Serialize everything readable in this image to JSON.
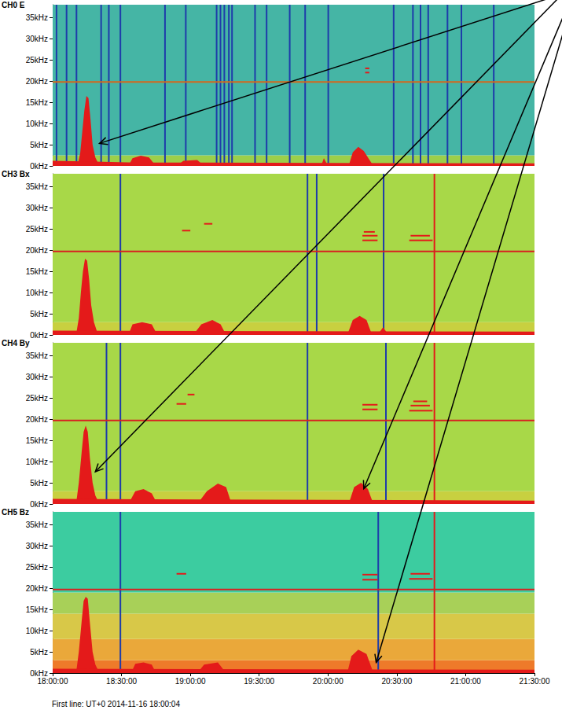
{
  "chart_data": [
    {
      "type": "spectrogram",
      "title": "CH0 E",
      "color": "#e41a1a",
      "grid": false,
      "tick_labels": "y",
      "xlim": [
        18,
        21.5
      ],
      "xticks": [
        {
          "value": 18,
          "label": "18:00:00"
        },
        {
          "value": 18.5,
          "label": "18:30:00"
        },
        {
          "value": 19,
          "label": "19:00:00"
        },
        {
          "value": 19.5,
          "label": "19:30:00"
        },
        {
          "value": 20,
          "label": "20:00:00"
        },
        {
          "value": 20.5,
          "label": "20:30:00"
        },
        {
          "value": 21,
          "label": "21:00:00"
        },
        {
          "value": 21.5,
          "label": "21:30:00"
        }
      ],
      "ylim": [
        0,
        38
      ],
      "yticks": [
        {
          "value": 0,
          "label": "0kHz"
        },
        {
          "value": 5,
          "label": "5kHz"
        },
        {
          "value": 10,
          "label": "10kHz"
        },
        {
          "value": 15,
          "label": "15kHz"
        },
        {
          "value": 20,
          "label": "20kHz"
        },
        {
          "value": 25,
          "label": "25kHz"
        },
        {
          "value": 30,
          "label": "30kHz"
        },
        {
          "value": 35,
          "label": "35kHz"
        }
      ],
      "bands": [
        {
          "from": 0,
          "to": 2.5,
          "color": "#9ccf4a"
        },
        {
          "from": 2.5,
          "to": 38,
          "color": "#45b5a5"
        }
      ],
      "spikes": [
        {
          "color": "#1e3caa",
          "t": [
            18.028,
            18.101,
            18.173,
            18.352,
            18.408,
            18.492,
            18.816,
            18.967,
            19.191,
            19.219,
            19.247,
            19.28,
            19.303,
            19.47,
            19.554,
            19.722,
            19.834,
            20.002,
            20.477,
            20.617,
            20.672,
            20.728,
            20.868,
            20.969,
            21.204
          ]
        }
      ],
      "lines": [
        {
          "f": 19.8,
          "color": "#d2691e"
        }
      ],
      "tones": [
        [
          20.27,
          20.3,
          22.0
        ],
        [
          20.27,
          20.3,
          23.0
        ]
      ],
      "bursts": [
        [
          [
            18.18,
            0
          ],
          [
            18.2,
            3
          ],
          [
            18.215,
            8
          ],
          [
            18.23,
            13
          ],
          [
            18.245,
            16.5
          ],
          [
            18.26,
            16
          ],
          [
            18.275,
            11
          ],
          [
            18.29,
            5
          ],
          [
            18.31,
            2
          ],
          [
            18.34,
            0
          ]
        ],
        [
          [
            18,
            0
          ],
          [
            18,
            1.2
          ],
          [
            18.3,
            1.0
          ],
          [
            18.6,
            0.8
          ],
          [
            21.5,
            0.6
          ],
          [
            21.5,
            0
          ]
        ],
        [
          [
            18.55,
            0
          ],
          [
            18.58,
            1.8
          ],
          [
            18.64,
            2.4
          ],
          [
            18.7,
            2
          ],
          [
            18.75,
            0
          ]
        ],
        [
          [
            18.9,
            0
          ],
          [
            18.95,
            1.2
          ],
          [
            19.05,
            1.4
          ],
          [
            19.1,
            0
          ]
        ],
        [
          [
            19.95,
            0
          ],
          [
            19.97,
            1.8
          ],
          [
            20.0,
            0
          ]
        ],
        [
          [
            20.15,
            0
          ],
          [
            20.18,
            3.2
          ],
          [
            20.22,
            4.5
          ],
          [
            20.26,
            3.5
          ],
          [
            20.3,
            1.5
          ],
          [
            20.33,
            0
          ]
        ]
      ],
      "arrows": [
        [
          18.34,
          5.3
        ]
      ]
    },
    {
      "type": "spectrogram",
      "title": "CH3 Bx",
      "color": "#e41a1a",
      "grid": false,
      "tick_labels": "y",
      "xlim": [
        18,
        21.5
      ],
      "xticks": [
        {
          "value": 18,
          "label": "18:00:00"
        },
        {
          "value": 18.5,
          "label": "18:30:00"
        },
        {
          "value": 19,
          "label": "19:00:00"
        },
        {
          "value": 19.5,
          "label": "19:30:00"
        },
        {
          "value": 20,
          "label": "20:00:00"
        },
        {
          "value": 20.5,
          "label": "20:30:00"
        },
        {
          "value": 21,
          "label": "21:00:00"
        },
        {
          "value": 21.5,
          "label": "21:30:00"
        }
      ],
      "ylim": [
        0,
        38
      ],
      "yticks": [
        {
          "value": 0,
          "label": "0kHz"
        },
        {
          "value": 5,
          "label": "5kHz"
        },
        {
          "value": 10,
          "label": "10kHz"
        },
        {
          "value": 15,
          "label": "15kHz"
        },
        {
          "value": 20,
          "label": "20kHz"
        },
        {
          "value": 25,
          "label": "25kHz"
        },
        {
          "value": 30,
          "label": "30kHz"
        },
        {
          "value": 35,
          "label": "35kHz"
        }
      ],
      "bands": [
        {
          "from": 0,
          "to": 3,
          "color": "#c8d040"
        },
        {
          "from": 3,
          "to": 38,
          "color": "#a8d848"
        }
      ],
      "spikes": [
        {
          "color": "#1e3caa",
          "t": [
            18.492,
            19.851,
            19.918,
            20.404
          ]
        },
        {
          "color": "#e41a1a",
          "t": [
            20.773
          ]
        }
      ],
      "lines": [
        {
          "f": 19.7,
          "color": "#d82020"
        }
      ],
      "tones": [
        [
          20.25,
          20.36,
          22.3
        ],
        [
          20.25,
          20.36,
          23.4
        ],
        [
          20.26,
          20.34,
          24.3
        ],
        [
          20.59,
          20.76,
          22.3
        ],
        [
          20.6,
          20.74,
          23.4
        ],
        [
          19.1,
          19.16,
          26.2
        ],
        [
          18.94,
          19.0,
          24.6
        ]
      ],
      "bursts": [
        [
          [
            18.17,
            0
          ],
          [
            18.19,
            4
          ],
          [
            18.205,
            10
          ],
          [
            18.22,
            15
          ],
          [
            18.235,
            18
          ],
          [
            18.25,
            17.5
          ],
          [
            18.265,
            13
          ],
          [
            18.28,
            7
          ],
          [
            18.3,
            3
          ],
          [
            18.33,
            0
          ]
        ],
        [
          [
            18,
            0
          ],
          [
            18,
            1
          ],
          [
            21.5,
            0.8
          ],
          [
            21.5,
            0
          ]
        ],
        [
          [
            18.55,
            0
          ],
          [
            18.58,
            2.5
          ],
          [
            18.65,
            3
          ],
          [
            18.72,
            2.5
          ],
          [
            18.76,
            0
          ]
        ],
        [
          [
            19.02,
            0
          ],
          [
            19.08,
            2.5
          ],
          [
            19.16,
            3.5
          ],
          [
            19.22,
            2.5
          ],
          [
            19.26,
            0
          ]
        ],
        [
          [
            20.14,
            0
          ],
          [
            20.18,
            3.5
          ],
          [
            20.23,
            4.5
          ],
          [
            20.28,
            3.5
          ],
          [
            20.32,
            0
          ]
        ],
        [
          [
            20.36,
            0
          ],
          [
            20.4,
            1.8
          ],
          [
            20.44,
            0
          ]
        ]
      ],
      "arrows": []
    },
    {
      "type": "spectrogram",
      "title": "CH4 By",
      "color": "#e41a1a",
      "grid": false,
      "tick_labels": "y",
      "xlim": [
        18,
        21.5
      ],
      "xticks": [
        {
          "value": 18,
          "label": "18:00:00"
        },
        {
          "value": 18.5,
          "label": "18:30:00"
        },
        {
          "value": 19,
          "label": "19:00:00"
        },
        {
          "value": 19.5,
          "label": "19:30:00"
        },
        {
          "value": 20,
          "label": "20:00:00"
        },
        {
          "value": 20.5,
          "label": "20:30:00"
        },
        {
          "value": 21,
          "label": "21:00:00"
        },
        {
          "value": 21.5,
          "label": "21:30:00"
        }
      ],
      "ylim": [
        0,
        38
      ],
      "yticks": [
        {
          "value": 0,
          "label": "0kHz"
        },
        {
          "value": 5,
          "label": "5kHz"
        },
        {
          "value": 10,
          "label": "10kHz"
        },
        {
          "value": 15,
          "label": "15kHz"
        },
        {
          "value": 20,
          "label": "20kHz"
        },
        {
          "value": 25,
          "label": "25kHz"
        },
        {
          "value": 30,
          "label": "30kHz"
        },
        {
          "value": 35,
          "label": "35kHz"
        }
      ],
      "bands": [
        {
          "from": 0,
          "to": 3,
          "color": "#c8d040"
        },
        {
          "from": 3,
          "to": 38,
          "color": "#a8d848"
        }
      ],
      "spikes": [
        {
          "color": "#1e3caa",
          "t": [
            18.391,
            18.492,
            19.851,
            20.421
          ]
        },
        {
          "color": "#e41a1a",
          "t": [
            20.773
          ]
        }
      ],
      "lines": [
        {
          "f": 19.7,
          "color": "#d82020"
        }
      ],
      "tones": [
        [
          20.25,
          20.36,
          22.3
        ],
        [
          20.25,
          20.36,
          23.4
        ],
        [
          20.59,
          20.76,
          22.0
        ],
        [
          20.6,
          20.74,
          23.2
        ],
        [
          20.62,
          20.72,
          24.2
        ],
        [
          18.9,
          18.97,
          23.6
        ],
        [
          18.98,
          19.03,
          25.8
        ]
      ],
      "bursts": [
        [
          [
            18.17,
            0
          ],
          [
            18.19,
            5
          ],
          [
            18.21,
            12
          ],
          [
            18.225,
            17
          ],
          [
            18.24,
            18.5
          ],
          [
            18.255,
            17
          ],
          [
            18.27,
            11
          ],
          [
            18.29,
            5
          ],
          [
            18.31,
            2
          ],
          [
            18.34,
            0
          ]
        ],
        [
          [
            18,
            0
          ],
          [
            18,
            1.2
          ],
          [
            21.5,
            0.8
          ],
          [
            21.5,
            0
          ]
        ],
        [
          [
            18.55,
            0
          ],
          [
            18.6,
            3
          ],
          [
            18.66,
            3.5
          ],
          [
            18.72,
            2.5
          ],
          [
            18.76,
            0
          ]
        ],
        [
          [
            19.05,
            0
          ],
          [
            19.12,
            3
          ],
          [
            19.2,
            4.8
          ],
          [
            19.26,
            4
          ],
          [
            19.3,
            0
          ]
        ],
        [
          [
            20.15,
            0
          ],
          [
            20.19,
            4
          ],
          [
            20.24,
            5
          ],
          [
            20.29,
            3.5
          ],
          [
            20.33,
            0
          ]
        ]
      ],
      "arrows": [
        [
          18.31,
          7.6
        ],
        [
          20.26,
          3.6
        ]
      ]
    },
    {
      "type": "spectrogram",
      "title": "CH5 Bz",
      "color": "#e41a1a",
      "grid": false,
      "xlim": [
        18,
        21.5
      ],
      "xticks": [
        {
          "value": 18,
          "label": "18:00:00"
        },
        {
          "value": 18.5,
          "label": "18:30:00"
        },
        {
          "value": 19,
          "label": "19:00:00"
        },
        {
          "value": 19.5,
          "label": "19:30:00"
        },
        {
          "value": 20,
          "label": "20:00:00"
        },
        {
          "value": 20.5,
          "label": "20:30:00"
        },
        {
          "value": 21,
          "label": "21:00:00"
        },
        {
          "value": 21.5,
          "label": "21:30:00"
        }
      ],
      "ylim": [
        0,
        38
      ],
      "yticks": [
        {
          "value": 0,
          "label": "0kHz"
        },
        {
          "value": 5,
          "label": "5kHz"
        },
        {
          "value": 10,
          "label": "10kHz"
        },
        {
          "value": 15,
          "label": "15kHz"
        },
        {
          "value": 20,
          "label": "20kHz"
        },
        {
          "value": 25,
          "label": "25kHz"
        },
        {
          "value": 30,
          "label": "30kHz"
        },
        {
          "value": 35,
          "label": "35kHz"
        }
      ],
      "bands": [
        {
          "from": 0,
          "to": 3,
          "color": "#ee7a2a"
        },
        {
          "from": 3,
          "to": 8,
          "color": "#eaa83a"
        },
        {
          "from": 8,
          "to": 14,
          "color": "#d8c848"
        },
        {
          "from": 14,
          "to": 19,
          "color": "#a8d058"
        },
        {
          "from": 19,
          "to": 38,
          "color": "#3ccca0"
        }
      ],
      "spikes": [
        {
          "color": "#1e3caa",
          "t": [
            18.492,
            20.365
          ]
        },
        {
          "color": "#e41a1a",
          "t": [
            20.773
          ]
        }
      ],
      "lines": [
        {
          "f": 19.7,
          "color": "#d82020"
        }
      ],
      "tones": [
        [
          20.25,
          20.36,
          22.0
        ],
        [
          20.25,
          20.36,
          23.2
        ],
        [
          20.59,
          20.76,
          22.2
        ],
        [
          20.6,
          20.74,
          23.4
        ],
        [
          18.9,
          18.97,
          23.4
        ]
      ],
      "bursts": [
        [
          [
            18.17,
            0
          ],
          [
            18.19,
            5
          ],
          [
            18.21,
            12
          ],
          [
            18.225,
            17
          ],
          [
            18.24,
            18
          ],
          [
            18.255,
            17.5
          ],
          [
            18.27,
            12
          ],
          [
            18.29,
            5
          ],
          [
            18.31,
            2
          ],
          [
            18.34,
            0
          ]
        ],
        [
          [
            18,
            0
          ],
          [
            18,
            1
          ],
          [
            21.5,
            0.8
          ],
          [
            21.5,
            0
          ]
        ],
        [
          [
            18.57,
            0
          ],
          [
            18.6,
            2.2
          ],
          [
            18.66,
            2.5
          ],
          [
            18.72,
            2
          ],
          [
            18.75,
            0
          ]
        ],
        [
          [
            19.05,
            0
          ],
          [
            19.1,
            2
          ],
          [
            19.2,
            2.5
          ],
          [
            19.26,
            0
          ]
        ],
        [
          [
            20.14,
            0
          ],
          [
            20.17,
            4
          ],
          [
            20.22,
            5.5
          ],
          [
            20.28,
            4.5
          ],
          [
            20.33,
            0
          ]
        ]
      ],
      "arrows": [
        [
          20.35,
          2.5
        ]
      ]
    }
  ],
  "footer": "First line: UT+0 2014-11-16 18:00:04"
}
